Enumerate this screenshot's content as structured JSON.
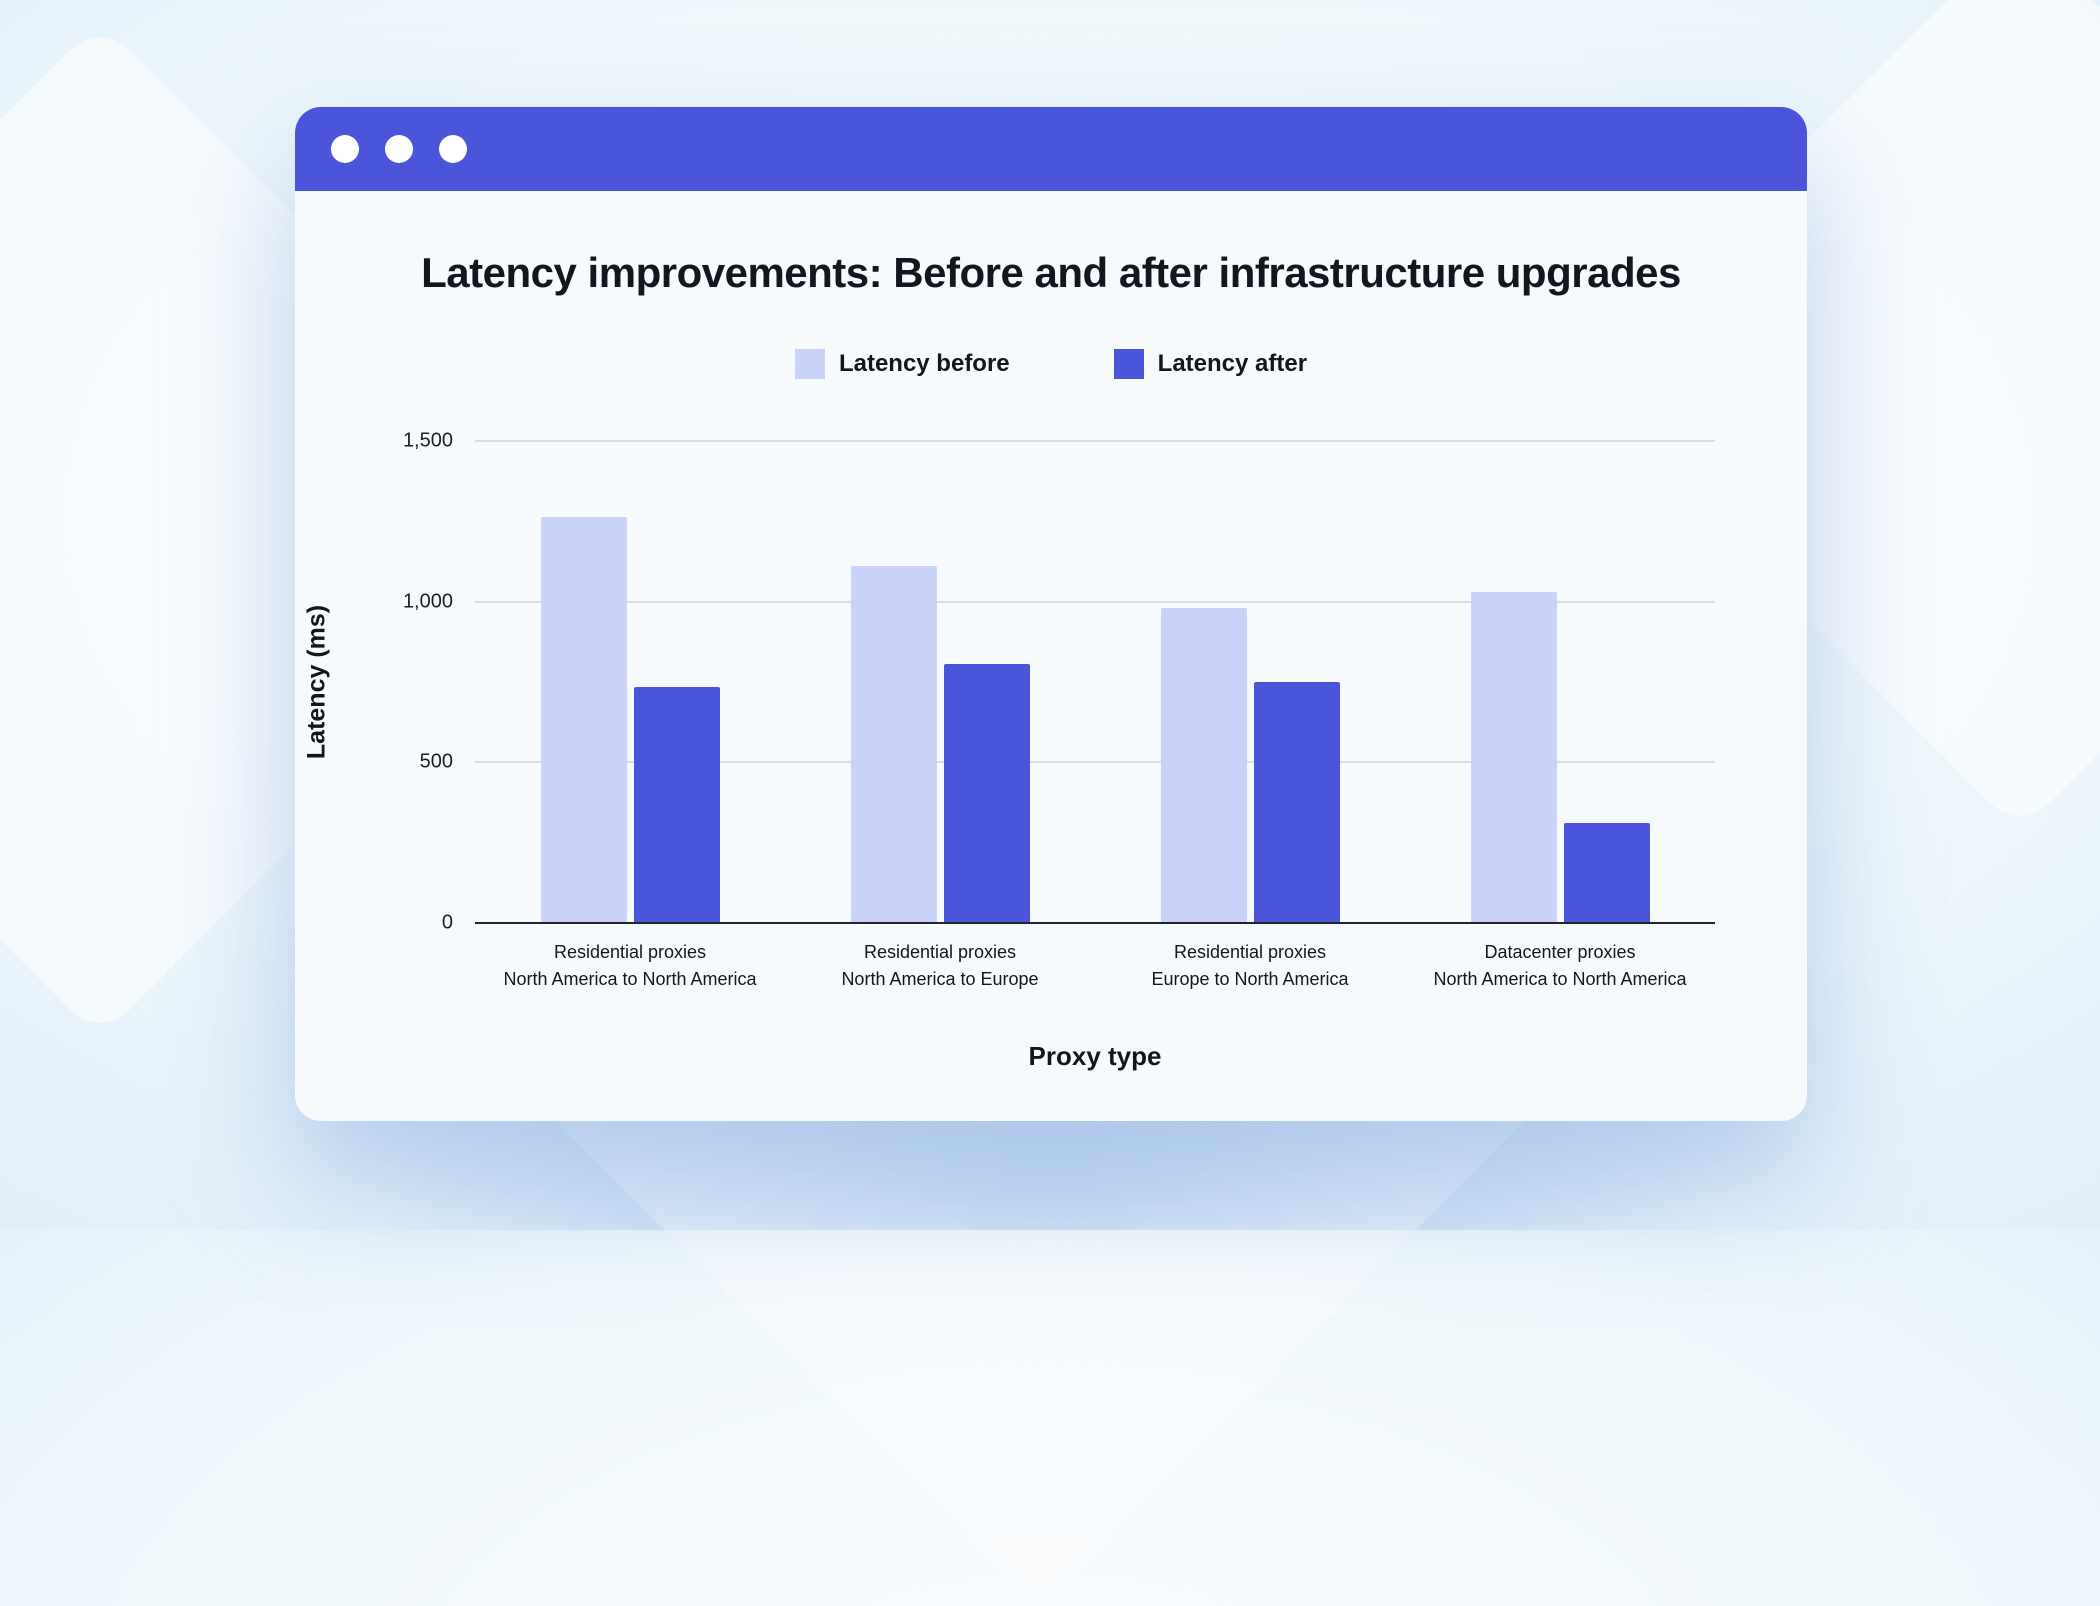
{
  "colors": {
    "accent": "#4a55da",
    "bar_before": "#c9d2f8",
    "bar_after": "#4a55da",
    "card_background": "#f7fafd"
  },
  "chart_data": {
    "type": "bar",
    "title": "Latency improvements: Before and after infrastructure upgrades",
    "xlabel": "Proxy type",
    "ylabel": "Latency (ms)",
    "categories": [
      "Residential proxies\nNorth America to North America",
      "Residential proxies\nNorth America to Europe",
      "Residential proxies\nEurope to North America",
      "Datacenter proxies\nNorth America to North America"
    ],
    "series": [
      {
        "name": "Latency before",
        "color": "#c9d2f8",
        "values": [
          1265,
          1110,
          980,
          1030
        ]
      },
      {
        "name": "Latency after",
        "color": "#4a55da",
        "values": [
          735,
          805,
          750,
          310
        ]
      }
    ],
    "ylim": [
      0,
      1500
    ],
    "yticks": [
      0,
      500,
      1000,
      1500
    ],
    "ytick_labels": [
      "0",
      "500",
      "1,000",
      "1,500"
    ],
    "grid": "horizontal",
    "legend_position": "top-center"
  }
}
